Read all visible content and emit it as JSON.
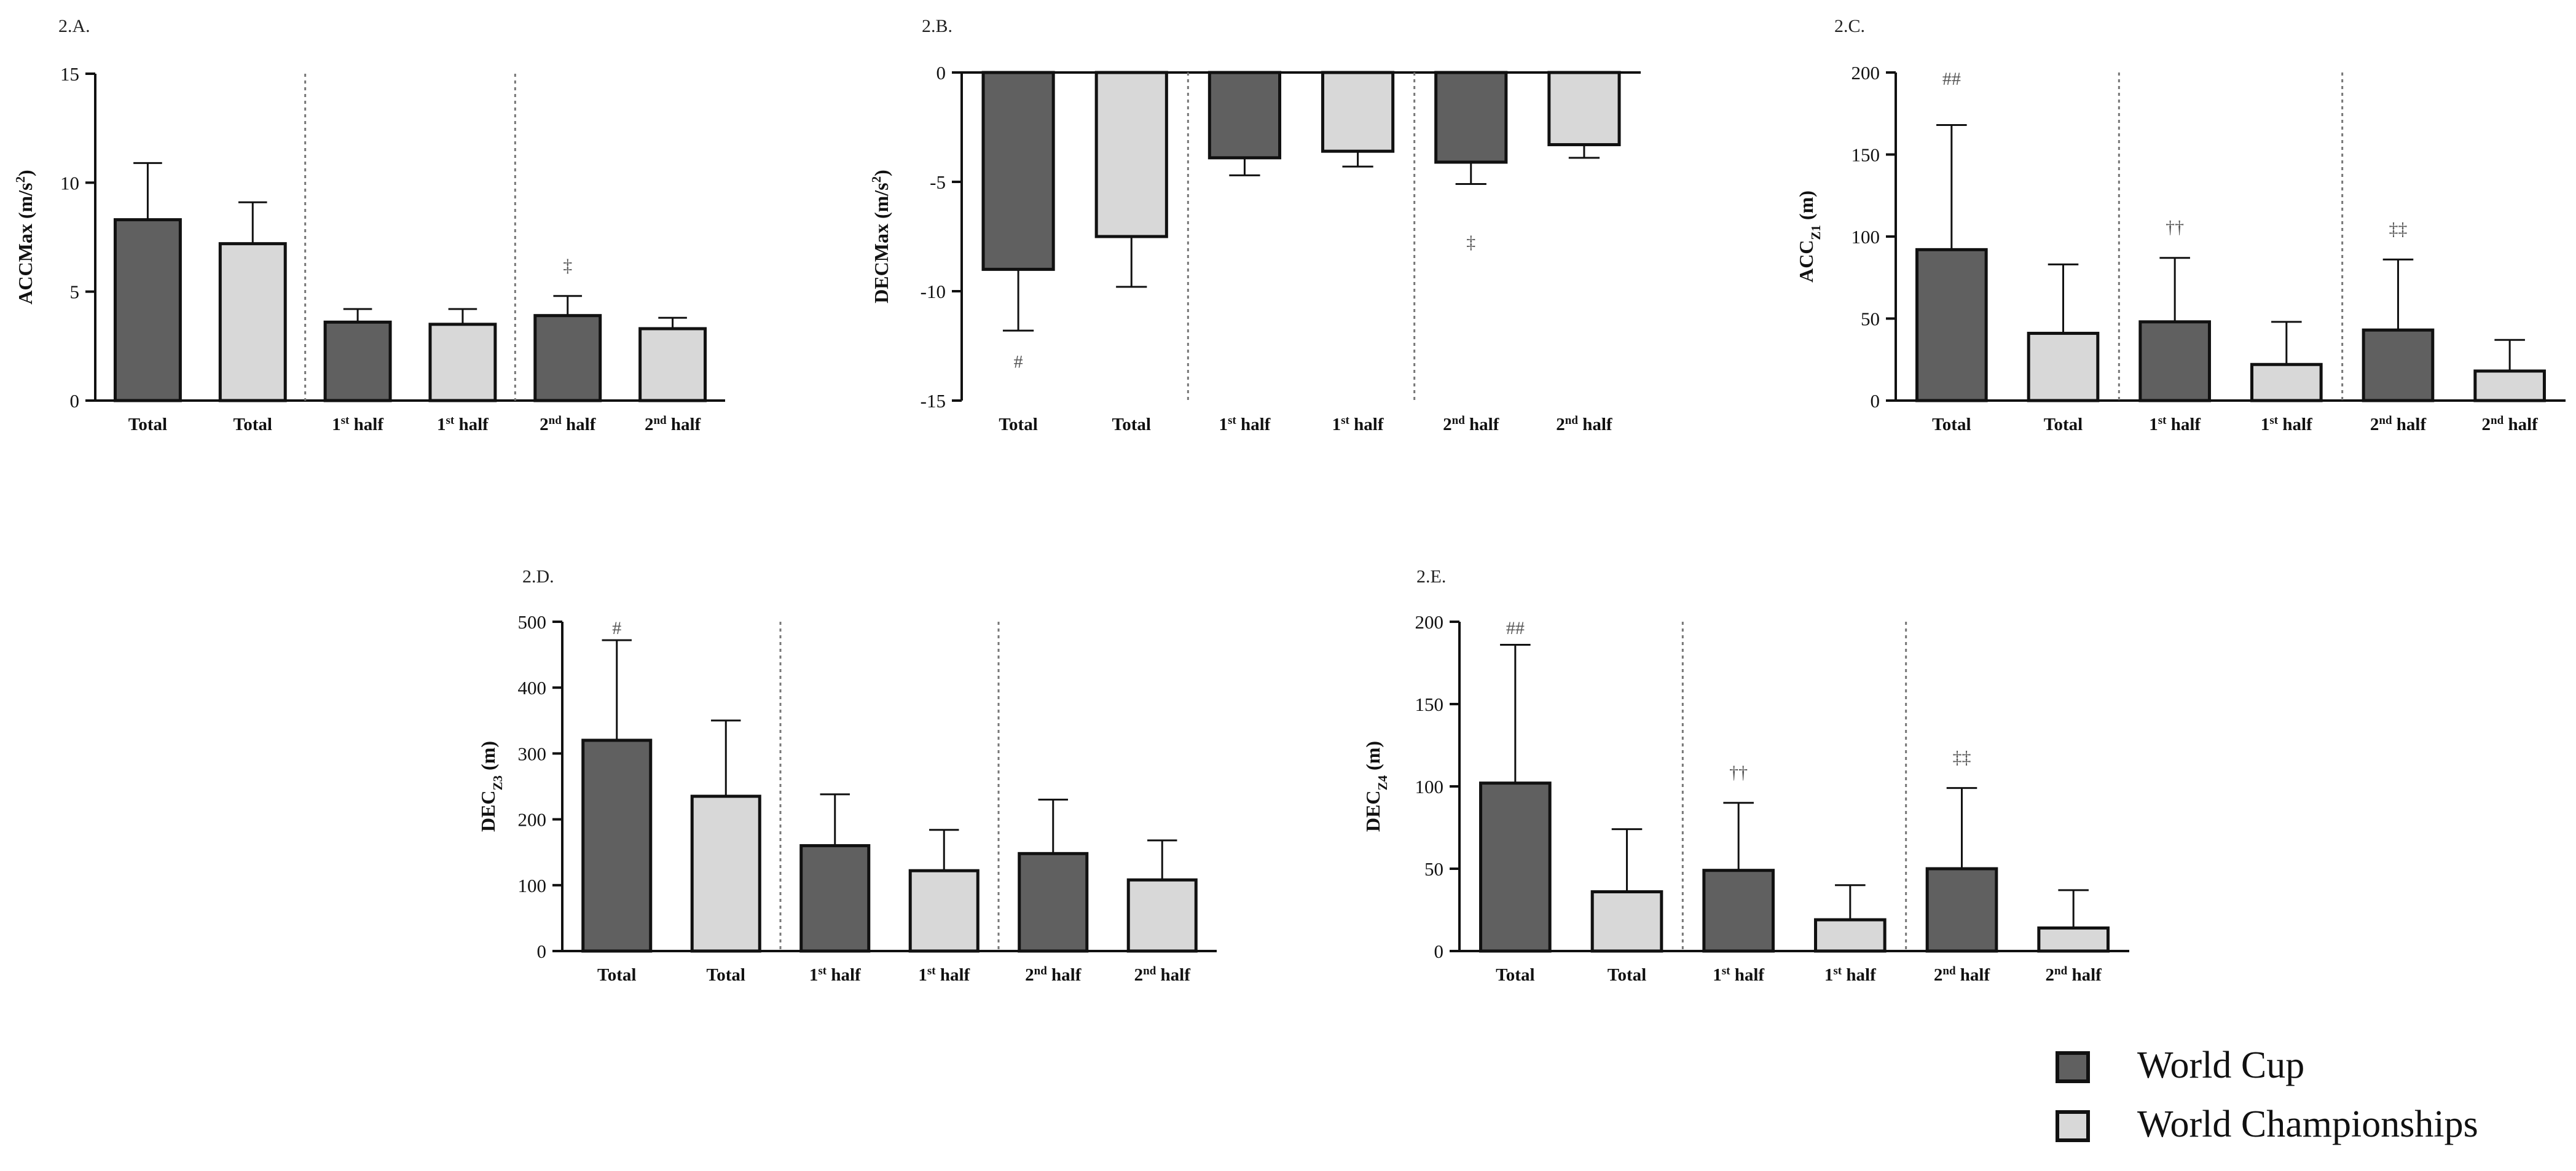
{
  "colors": {
    "world_cup": "#606060",
    "world_championships": "#d8d8d8",
    "outline": "#111111",
    "divider": "#777777"
  },
  "legend": {
    "items": [
      {
        "label": "World Cup",
        "color": "#606060"
      },
      {
        "label": "World Championships",
        "color": "#d8d8d8"
      }
    ]
  },
  "chart_data": [
    {
      "id": "2.A",
      "panel_label": "2.A.",
      "type": "bar",
      "ylabel": "ACCMax (m/s",
      "ylabel_sup": "2",
      "ylabel_tail": ")",
      "ylim": [
        0,
        15
      ],
      "yticks": [
        0,
        5,
        10,
        15
      ],
      "categories": [
        {
          "base": "Total",
          "sup": ""
        },
        {
          "base": "Total",
          "sup": ""
        },
        {
          "base": "1",
          "sup": "st",
          "tail": " half"
        },
        {
          "base": "1",
          "sup": "st",
          "tail": " half"
        },
        {
          "base": "2",
          "sup": "nd",
          "tail": " half"
        },
        {
          "base": "2",
          "sup": "nd",
          "tail": " half"
        }
      ],
      "values": [
        8.3,
        7.2,
        3.6,
        3.5,
        3.9,
        3.3
      ],
      "errors": [
        2.6,
        1.9,
        0.6,
        0.7,
        0.9,
        0.5
      ],
      "annotations": [
        {
          "index": 4,
          "text": "‡",
          "pos": "above"
        }
      ]
    },
    {
      "id": "2.B",
      "panel_label": "2.B.",
      "type": "bar",
      "ylabel": "DECMax (m/s",
      "ylabel_sup": "2",
      "ylabel_tail": ")",
      "ylim": [
        -15,
        0
      ],
      "yticks": [
        -15,
        -10,
        -5,
        0
      ],
      "categories": [
        {
          "base": "Total",
          "sup": ""
        },
        {
          "base": "Total",
          "sup": ""
        },
        {
          "base": "1",
          "sup": "st",
          "tail": " half"
        },
        {
          "base": "1",
          "sup": "st",
          "tail": " half"
        },
        {
          "base": "2",
          "sup": "nd",
          "tail": " half"
        },
        {
          "base": "2",
          "sup": "nd",
          "tail": " half"
        }
      ],
      "values": [
        -9.0,
        -7.5,
        -3.9,
        -3.6,
        -4.1,
        -3.3
      ],
      "errors": [
        2.8,
        2.3,
        0.8,
        0.7,
        1.0,
        0.6
      ],
      "annotations": [
        {
          "index": 0,
          "text": "#",
          "pos": "below"
        },
        {
          "index": 4,
          "text": "‡",
          "pos": "below"
        }
      ]
    },
    {
      "id": "2.C",
      "panel_label": "2.C.",
      "type": "bar",
      "ylabel": "ACC",
      "ylabel_sub": "Z1",
      "ylabel_tail": " (m)",
      "ylim": [
        0,
        200
      ],
      "yticks": [
        0,
        50,
        100,
        150,
        200
      ],
      "categories": [
        {
          "base": "Total",
          "sup": ""
        },
        {
          "base": "Total",
          "sup": ""
        },
        {
          "base": "1",
          "sup": "st",
          "tail": " half"
        },
        {
          "base": "1",
          "sup": "st",
          "tail": " half"
        },
        {
          "base": "2",
          "sup": "nd",
          "tail": " half"
        },
        {
          "base": "2",
          "sup": "nd",
          "tail": " half"
        }
      ],
      "values": [
        92,
        41,
        48,
        22,
        43,
        18
      ],
      "errors": [
        76,
        42,
        39,
        26,
        43,
        19
      ],
      "annotations": [
        {
          "index": 0,
          "text": "##",
          "pos": "top"
        },
        {
          "index": 2,
          "text": "††",
          "pos": "above"
        },
        {
          "index": 4,
          "text": "‡‡",
          "pos": "above"
        }
      ]
    },
    {
      "id": "2.D",
      "panel_label": "2.D.",
      "type": "bar",
      "ylabel": "DEC",
      "ylabel_sub": "Z3",
      "ylabel_tail": " (m)",
      "ylim": [
        0,
        500
      ],
      "yticks": [
        0,
        100,
        200,
        300,
        400,
        500
      ],
      "categories": [
        {
          "base": "Total",
          "sup": ""
        },
        {
          "base": "Total",
          "sup": ""
        },
        {
          "base": "1",
          "sup": "st",
          "tail": " half"
        },
        {
          "base": "1",
          "sup": "st",
          "tail": " half"
        },
        {
          "base": "2",
          "sup": "nd",
          "tail": " half"
        },
        {
          "base": "2",
          "sup": "nd",
          "tail": " half"
        }
      ],
      "values": [
        320,
        235,
        160,
        122,
        148,
        108
      ],
      "errors": [
        152,
        115,
        78,
        62,
        82,
        60
      ],
      "annotations": [
        {
          "index": 0,
          "text": "#",
          "pos": "top"
        }
      ]
    },
    {
      "id": "2.E",
      "panel_label": "2.E.",
      "type": "bar",
      "ylabel": "DEC",
      "ylabel_sub": "Z4",
      "ylabel_tail": " (m)",
      "ylim": [
        0,
        200
      ],
      "yticks": [
        0,
        50,
        100,
        150,
        200
      ],
      "categories": [
        {
          "base": "Total",
          "sup": ""
        },
        {
          "base": "Total",
          "sup": ""
        },
        {
          "base": "1",
          "sup": "st",
          "tail": " half"
        },
        {
          "base": "1",
          "sup": "st",
          "tail": " half"
        },
        {
          "base": "2",
          "sup": "nd",
          "tail": " half"
        },
        {
          "base": "2",
          "sup": "nd",
          "tail": " half"
        }
      ],
      "values": [
        102,
        36,
        49,
        19,
        50,
        14
      ],
      "errors": [
        84,
        38,
        41,
        21,
        49,
        23
      ],
      "annotations": [
        {
          "index": 0,
          "text": "##",
          "pos": "top"
        },
        {
          "index": 2,
          "text": "††",
          "pos": "above"
        },
        {
          "index": 4,
          "text": "‡‡",
          "pos": "above"
        }
      ]
    }
  ]
}
